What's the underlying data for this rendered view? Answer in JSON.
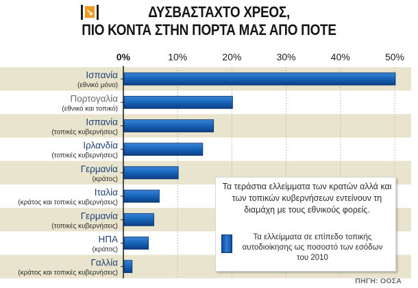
{
  "title_line1": "ΔΥΣΒΑΣΤΑΧΤΟ ΧΡΕΟΣ,",
  "title_line2": "ΠΙΟ ΚΟΝΤΑ ΣΤΗΝ ΠΟΡΤΑ ΜΑΣ ΑΠΟ ΠΟΤΕ",
  "colors": {
    "bar": "#1663b8",
    "band": "#e8e4cd",
    "accent": "#f39a1c",
    "axis": "#1a1a1a"
  },
  "chart_data": {
    "type": "bar",
    "orientation": "horizontal",
    "categories": [
      {
        "label": "Ισπανία",
        "sublabel": "(εθνικό μόνο)"
      },
      {
        "label": "Πορτογαλία",
        "sublabel": "(εθνικό και τοπικό)"
      },
      {
        "label": "Ισπανία",
        "sublabel": "(τοπικές κυβερνήσεις)"
      },
      {
        "label": "Ιρλανδία",
        "sublabel": "(τοπικές κυβερνήσεις)"
      },
      {
        "label": "Γερμανία",
        "sublabel": "(κράτος)"
      },
      {
        "label": "Ιταλία",
        "sublabel": "(κράτος και τοπικές κυβερνήσεις)"
      },
      {
        "label": "Γερμανία",
        "sublabel": "(τοπικές κυβερνήσεις)"
      },
      {
        "label": "ΗΠΑ",
        "sublabel": "(κράτος)"
      },
      {
        "label": "Γαλλία",
        "sublabel": "(κράτος και τοπικές κυβερνήσεις)"
      }
    ],
    "values": [
      50,
      20,
      16.5,
      14.5,
      10,
      6.5,
      5.5,
      4.5,
      1.5
    ],
    "xlim": [
      0,
      50
    ],
    "ticks": [
      "0%",
      "10%",
      "20%",
      "30%",
      "40%",
      "50%"
    ],
    "tick_values": [
      0,
      10,
      20,
      30,
      40,
      50
    ],
    "grid": true,
    "legend_position": "bottom-right",
    "annotation": "Τα τεράστια ελλείμματα των κρατών αλλά και των τοπικών κυβερνήσεων εντείνουν τη διαμάχη με τους εθνικούς φορείς.",
    "series_label": "Τα ελλείμματα σε επίπεδο τοπικής αυτοδιοίκησης ως ποσοστό των εσόδων του 2010"
  },
  "source": "ΠΗΓΗ: ΟΟΣΑ"
}
